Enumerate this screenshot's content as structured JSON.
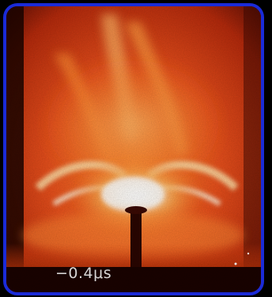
{
  "image": {
    "description_label": "photo",
    "timestamp_label": "−0.4μs"
  },
  "colors": {
    "frame_border": "#1a2bd8",
    "background": "#000000",
    "glow_core": "#fff2da",
    "glow_mid": "#ff9a3c",
    "glow_outer": "#e0441a",
    "glow_dark": "#7a1204",
    "probe": "#2a0602",
    "label_text": "#e8e8e8"
  }
}
